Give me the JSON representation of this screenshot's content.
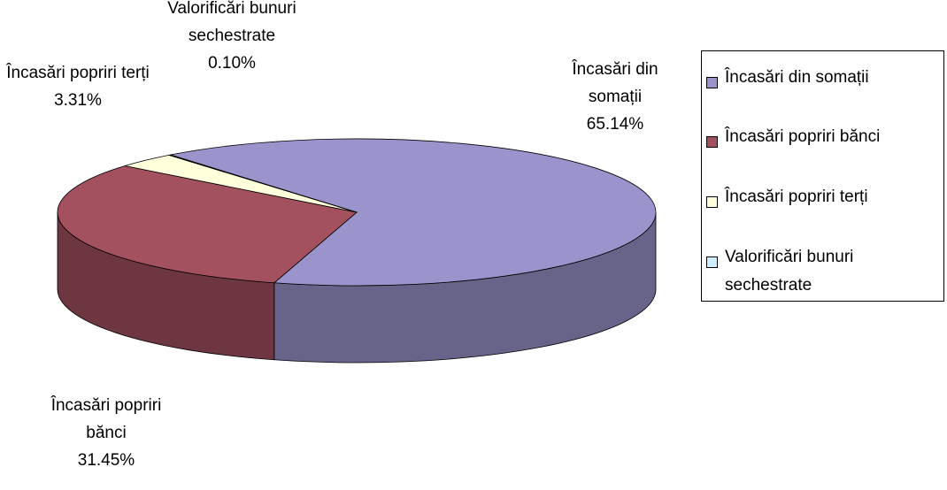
{
  "chart_data": {
    "type": "pie",
    "categories": [
      "Încasări din somații",
      "Încasări popriri bănci",
      "Încasări popriri terți",
      "Valorificări bunuri sechestrate"
    ],
    "values": [
      65.14,
      31.45,
      3.31,
      0.1
    ],
    "value_labels": [
      "65.14%",
      "31.45%",
      "3.31%",
      "0.10%"
    ],
    "colors": [
      "#9b94cc",
      "#a3505f",
      "#ffffdc",
      "#cdeefe"
    ],
    "legend": "right"
  }
}
